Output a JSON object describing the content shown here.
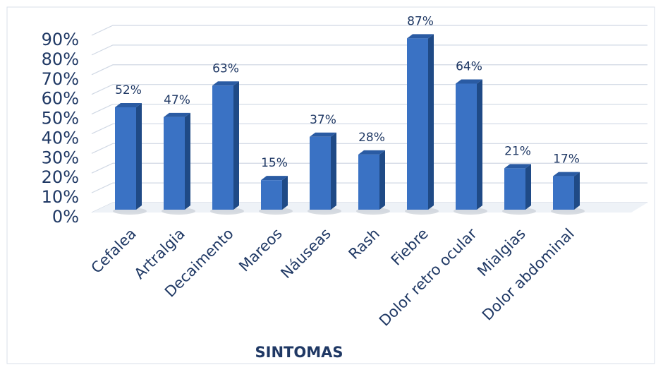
{
  "chart_data": {
    "type": "bar3d",
    "categories": [
      "Cefalea",
      "Artralgia",
      "Decaimento",
      "Mareos",
      "Náuseas",
      "Rash",
      "Fiebre",
      "Dolor retro ocular",
      "Mialgias",
      "Dolor abdominal"
    ],
    "values": [
      52,
      47,
      63,
      15,
      37,
      28,
      87,
      64,
      21,
      17
    ],
    "value_labels": [
      "52%",
      "47%",
      "63%",
      "15%",
      "37%",
      "28%",
      "87%",
      "64%",
      "21%",
      "17%"
    ],
    "color": "#3a72c4",
    "ylim": [
      0,
      90
    ],
    "yticks": [
      {
        "value": 0,
        "label": "0%"
      },
      {
        "value": 10,
        "label": "10%"
      },
      {
        "value": 20,
        "label": "20%"
      },
      {
        "value": 30,
        "label": "30%"
      },
      {
        "value": 40,
        "label": "40%"
      },
      {
        "value": 50,
        "label": "50%"
      },
      {
        "value": 60,
        "label": "60%"
      },
      {
        "value": 70,
        "label": "70%"
      },
      {
        "value": 80,
        "label": "80%"
      },
      {
        "value": 90,
        "label": "90%"
      }
    ],
    "grid": true,
    "xlabel": "SINTOMAS"
  }
}
